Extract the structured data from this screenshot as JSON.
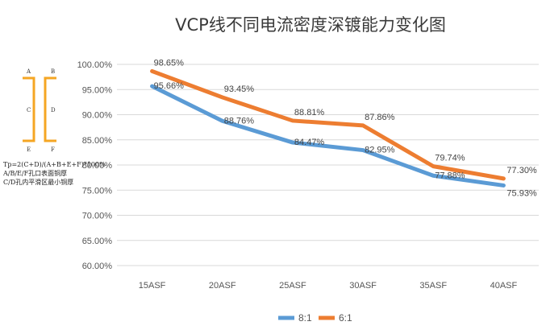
{
  "chart_data": {
    "type": "line",
    "title": "VCP线不同电流密度深镀能力变化图",
    "categories": [
      "15ASF",
      "20ASF",
      "25ASF",
      "30ASF",
      "35ASF",
      "40ASF"
    ],
    "series": [
      {
        "name": "8:1",
        "color": "#5b9bd5",
        "values": [
          95.66,
          88.76,
          84.47,
          82.95,
          77.88,
          75.93
        ],
        "labels": [
          "95.66%",
          "88.76%",
          "84.47%",
          "82.95%",
          "77.88%",
          "75.93%"
        ]
      },
      {
        "name": "6:1",
        "color": "#ed7d31",
        "values": [
          98.65,
          93.45,
          88.81,
          87.86,
          79.74,
          77.3
        ],
        "labels": [
          "98.65%",
          "93.45%",
          "88.81%",
          "87.86%",
          "79.74%",
          "77.30%"
        ]
      }
    ],
    "ylim": [
      60,
      100
    ],
    "yticks": [
      "100.00%",
      "95.00%",
      "90.00%",
      "85.00%",
      "80.00%",
      "75.00%",
      "70.00%",
      "65.00%",
      "60.00%"
    ],
    "grid": true,
    "legend_position": "bottom"
  },
  "diagram": {
    "letters": {
      "a": "A",
      "b": "B",
      "c": "C",
      "d": "D",
      "e": "E",
      "f": "F"
    },
    "bracket_color": "#f5a623",
    "notes": [
      "Tp=2(C+D)/(A+B+E+F)*100%",
      "A/B/E/F孔口表面铜厚",
      "C/D孔内平滑区最小铜厚"
    ]
  }
}
